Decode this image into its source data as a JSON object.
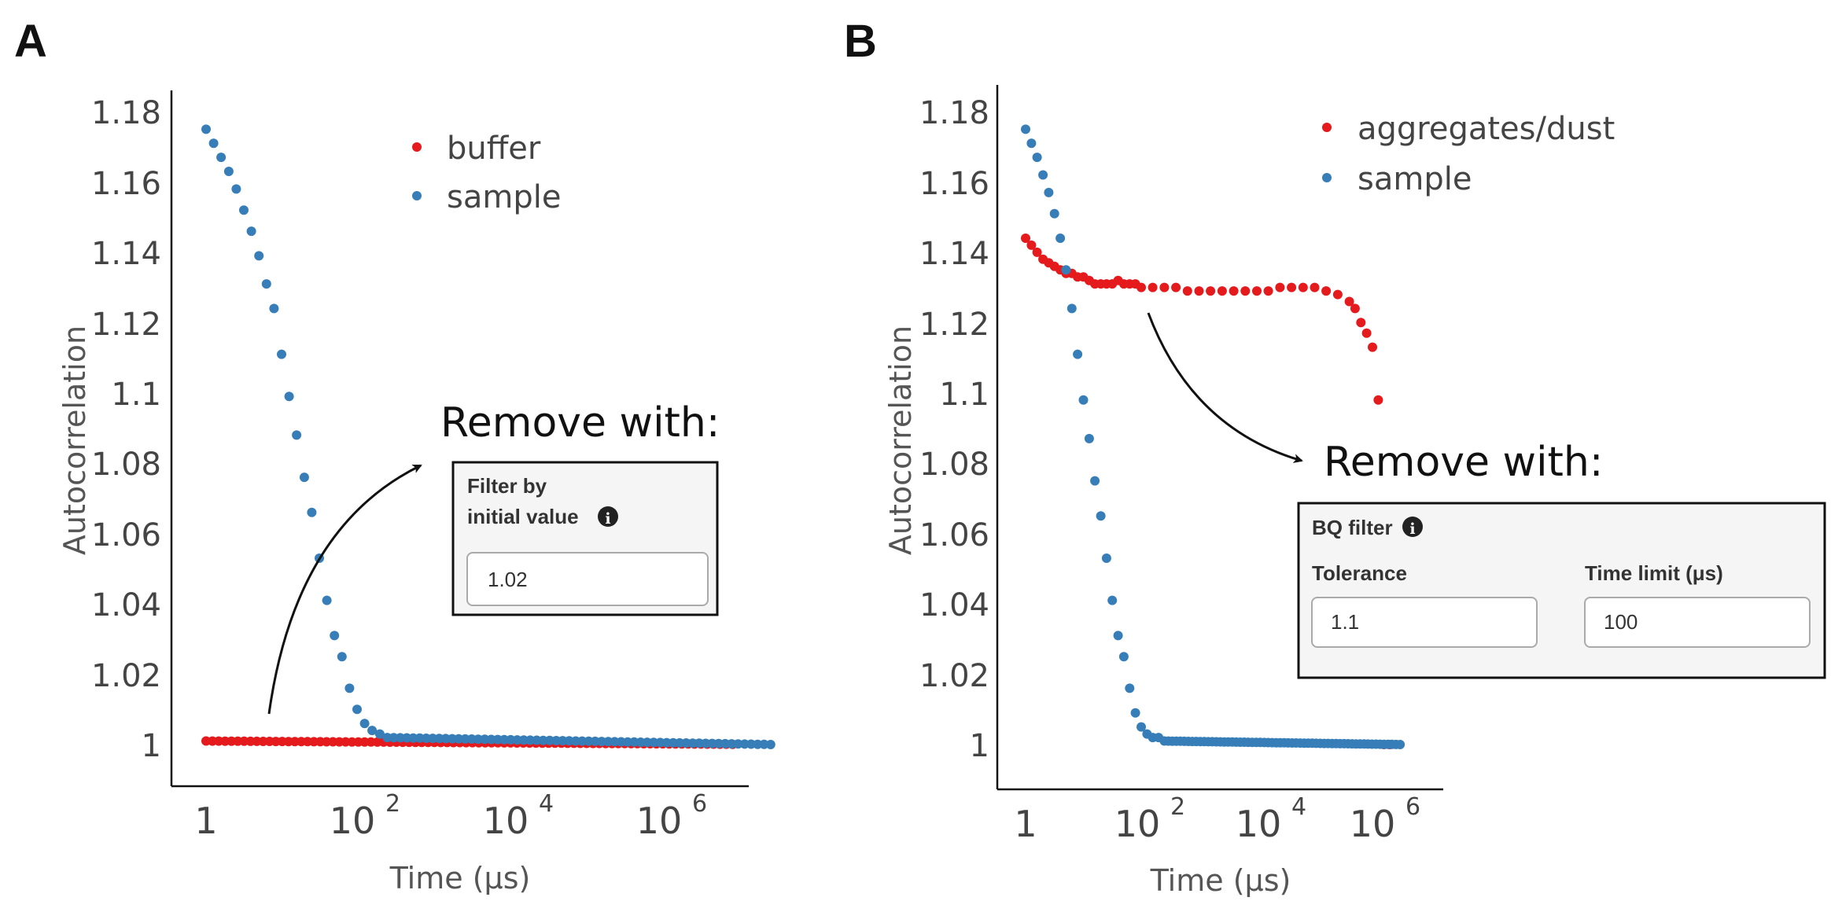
{
  "panels": [
    {
      "label": "A",
      "legend": [
        {
          "name": "buffer",
          "color": "#e41a1c"
        },
        {
          "name": "sample",
          "color": "#377eb8"
        }
      ],
      "callout": {
        "title": "Remove with:",
        "box_lines": [
          "Filter by",
          "initial value"
        ],
        "info_icon": "info-circle-icon",
        "fields": [
          {
            "label": "",
            "value": "1.02"
          }
        ]
      }
    },
    {
      "label": "B",
      "legend": [
        {
          "name": "aggregates/dust",
          "color": "#e41a1c"
        },
        {
          "name": "sample",
          "color": "#377eb8"
        }
      ],
      "callout": {
        "title": "Remove with:",
        "box_lines": [
          "BQ filter"
        ],
        "info_icon": "info-circle-icon",
        "fields": [
          {
            "label": "Tolerance",
            "value": "1.1"
          },
          {
            "label": "Time limit (μs)",
            "value": "100"
          }
        ]
      }
    }
  ],
  "chart_data": [
    {
      "type": "scatter",
      "xlabel": "Time (μs)",
      "ylabel": "Autocorrelation",
      "x_scale": "log",
      "xlim": [
        0.3,
        40000000
      ],
      "ylim": [
        0.988,
        1.188
      ],
      "x_ticks": [
        {
          "base": "1",
          "exp": ""
        },
        {
          "base": "10",
          "exp": "2"
        },
        {
          "base": "10",
          "exp": "4"
        },
        {
          "base": "10",
          "exp": "6"
        }
      ],
      "x_tick_values": [
        1,
        100,
        10000,
        1000000
      ],
      "y_ticks": [
        "1",
        "1.02",
        "1.04",
        "1.06",
        "1.08",
        "1.1",
        "1.12",
        "1.14",
        "1.16",
        "1.18"
      ],
      "y_tick_values": [
        1,
        1.02,
        1.04,
        1.06,
        1.08,
        1.1,
        1.12,
        1.14,
        1.16,
        1.18
      ],
      "grid": false,
      "legend_position": "top-right",
      "series": [
        {
          "name": "buffer",
          "color": "#e41a1c",
          "x": [
            1,
            30000000
          ],
          "y_start": 1.001,
          "y_end": 1.0,
          "n_points": 90
        },
        {
          "name": "sample",
          "color": "#377eb8",
          "x": [
            1.0,
            1.26,
            1.58,
            2.0,
            2.51,
            3.16,
            3.98,
            5.01,
            6.31,
            7.94,
            10.0,
            12.6,
            15.8,
            20.0,
            25.1,
            31.6,
            39.8,
            50.1,
            63.1,
            79.4,
            100,
            126,
            158,
            200,
            251
          ],
          "y": [
            1.175,
            1.171,
            1.167,
            1.163,
            1.158,
            1.152,
            1.146,
            1.139,
            1.131,
            1.124,
            1.111,
            1.099,
            1.088,
            1.076,
            1.066,
            1.053,
            1.041,
            1.031,
            1.025,
            1.016,
            1.01,
            1.006,
            1.004,
            1.003,
            1.002
          ],
          "tail_x": [
            251,
            30000000
          ],
          "tail_y": [
            1.002,
            1.0
          ]
        }
      ]
    },
    {
      "type": "scatter",
      "xlabel": "Time (μs)",
      "ylabel": "Autocorrelation",
      "x_scale": "log",
      "xlim": [
        0.55,
        5000000
      ],
      "ylim": [
        0.988,
        1.188
      ],
      "x_ticks": [
        {
          "base": "1",
          "exp": ""
        },
        {
          "base": "10",
          "exp": "2"
        },
        {
          "base": "10",
          "exp": "4"
        },
        {
          "base": "10",
          "exp": "6"
        }
      ],
      "x_tick_values": [
        1,
        100,
        10000,
        1000000
      ],
      "y_ticks": [
        "1",
        "1.02",
        "1.04",
        "1.06",
        "1.08",
        "1.1",
        "1.12",
        "1.14",
        "1.16",
        "1.18"
      ],
      "y_tick_values": [
        1,
        1.02,
        1.04,
        1.06,
        1.08,
        1.1,
        1.12,
        1.14,
        1.16,
        1.18
      ],
      "grid": false,
      "legend_position": "top-right",
      "series": [
        {
          "name": "aggregates/dust",
          "color": "#e41a1c",
          "x": [
            1.0,
            1.26,
            1.58,
            2.0,
            2.51,
            3.16,
            3.98,
            5.01,
            6.31,
            7.94,
            10.0,
            12.6,
            15.8,
            20.0,
            25.1,
            31.6,
            39.8,
            50.1,
            63.1,
            79.4,
            100,
            158,
            251,
            398,
            631,
            1000,
            1580,
            2510,
            3980,
            6310,
            10000,
            15800,
            25100,
            39800,
            63100,
            100000,
            158000,
            251000,
            398000,
            501000,
            631000,
            794000,
            1000000,
            1260000,
            1580000,
            2000000
          ],
          "y": [
            1.144,
            1.142,
            1.14,
            1.138,
            1.137,
            1.136,
            1.135,
            1.134,
            1.134,
            1.133,
            1.133,
            1.132,
            1.131,
            1.131,
            1.131,
            1.131,
            1.132,
            1.131,
            1.131,
            1.131,
            1.13,
            1.13,
            1.13,
            1.13,
            1.129,
            1.129,
            1.129,
            1.129,
            1.129,
            1.129,
            1.129,
            1.129,
            1.13,
            1.13,
            1.13,
            1.13,
            1.129,
            1.128,
            1.126,
            1.124,
            1.12,
            1.117,
            1.113,
            1.098,
            1.0,
            1.0
          ]
        },
        {
          "name": "sample",
          "color": "#377eb8",
          "x": [
            1.0,
            1.26,
            1.58,
            2.0,
            2.51,
            3.16,
            3.98,
            5.01,
            6.31,
            7.94,
            10.0,
            12.6,
            15.8,
            20.0,
            25.1,
            31.6,
            39.8,
            50.1,
            63.1,
            79.4,
            100,
            126,
            158,
            200,
            251
          ],
          "y": [
            1.175,
            1.171,
            1.167,
            1.162,
            1.157,
            1.151,
            1.144,
            1.135,
            1.124,
            1.111,
            1.098,
            1.087,
            1.075,
            1.065,
            1.053,
            1.041,
            1.031,
            1.025,
            1.016,
            1.009,
            1.005,
            1.003,
            1.002,
            1.002,
            1.001
          ],
          "tail_x": [
            251,
            3000000
          ],
          "tail_y": [
            1.001,
            1.0
          ]
        }
      ]
    }
  ]
}
